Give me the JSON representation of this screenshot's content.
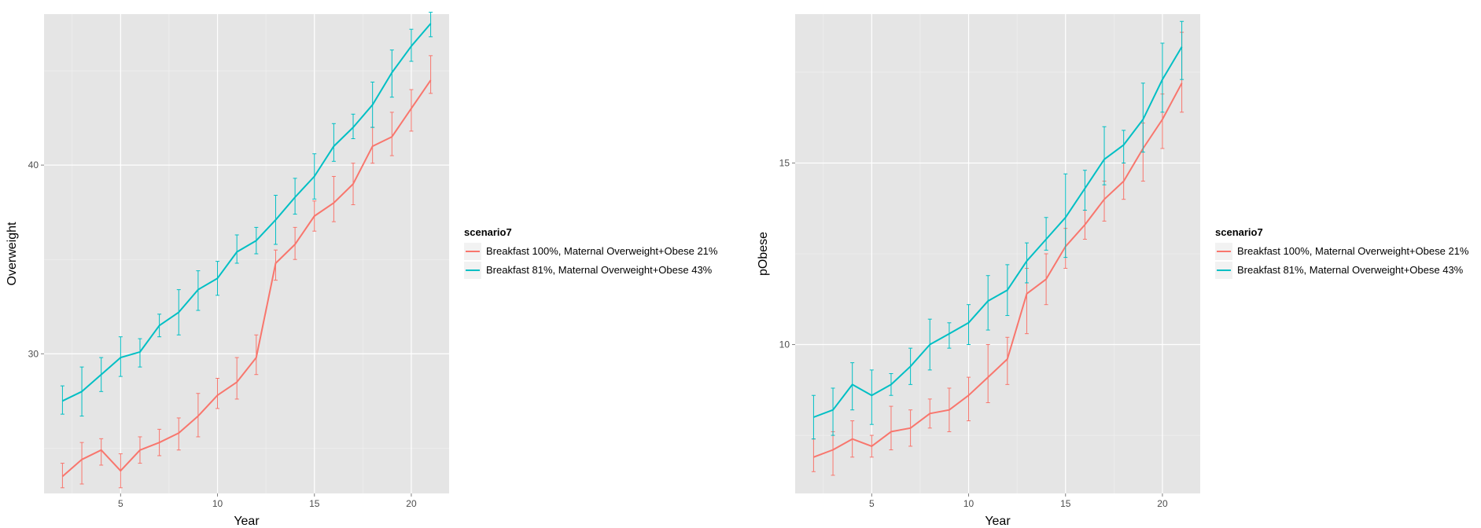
{
  "colors": {
    "series_1": "#F8766D",
    "series_2": "#00BFC4",
    "panel_bg": "#E5E5E5",
    "grid": "#FFFFFF"
  },
  "chart_data": [
    {
      "type": "line",
      "xlabel": "Year",
      "ylabel": "Overweight",
      "xlim": [
        1.05,
        21.95
      ],
      "ylim": [
        22.6,
        48.0
      ],
      "xticks": [
        5,
        10,
        15,
        20
      ],
      "yticks": [
        30,
        40
      ],
      "grid": true,
      "error_bars": true,
      "legend": {
        "title": "scenario7",
        "position": "right"
      },
      "x": [
        2,
        3,
        4,
        5,
        6,
        7,
        8,
        9,
        10,
        11,
        12,
        13,
        14,
        15,
        16,
        17,
        18,
        19,
        20,
        21
      ],
      "series": [
        {
          "name": "Breakfast 100%, Maternal Overweight+Obese 21%",
          "values": [
            23.5,
            24.4,
            24.9,
            23.8,
            24.9,
            25.3,
            25.8,
            26.7,
            27.8,
            28.5,
            29.8,
            34.8,
            35.8,
            37.3,
            38.0,
            39.0,
            41.0,
            41.5,
            43.0,
            44.5
          ],
          "lower": [
            22.9,
            23.1,
            24.1,
            22.9,
            24.2,
            24.6,
            24.9,
            25.6,
            27.1,
            27.6,
            28.9,
            33.9,
            35.0,
            36.5,
            37.0,
            37.9,
            40.1,
            40.5,
            41.8,
            43.8
          ],
          "upper": [
            24.2,
            25.3,
            25.5,
            24.7,
            25.6,
            26.0,
            26.6,
            27.9,
            28.7,
            29.8,
            31.0,
            35.5,
            36.7,
            38.1,
            39.4,
            40.1,
            42.0,
            42.8,
            44.0,
            45.8
          ]
        },
        {
          "name": "Breakfast 81%, Maternal Overweight+Obese 43%",
          "values": [
            27.5,
            28.0,
            28.9,
            29.8,
            30.1,
            31.5,
            32.2,
            33.4,
            34.0,
            35.4,
            36.0,
            37.1,
            38.3,
            39.4,
            41.0,
            42.0,
            43.2,
            44.9,
            46.3,
            47.5
          ],
          "lower": [
            26.8,
            26.7,
            28.0,
            28.8,
            29.3,
            30.9,
            31.0,
            32.3,
            33.1,
            34.8,
            35.3,
            35.8,
            37.4,
            38.2,
            40.2,
            41.4,
            42.0,
            43.6,
            45.5,
            46.8
          ],
          "upper": [
            28.3,
            29.3,
            29.8,
            30.9,
            30.8,
            32.1,
            33.4,
            34.4,
            34.9,
            36.3,
            36.7,
            38.4,
            39.3,
            40.6,
            42.2,
            42.7,
            44.4,
            46.1,
            47.2,
            48.1
          ]
        }
      ]
    },
    {
      "type": "line",
      "xlabel": "Year",
      "ylabel": "pObese",
      "xlim": [
        1.05,
        21.95
      ],
      "ylim": [
        5.9,
        19.1
      ],
      "xticks": [
        5,
        10,
        15,
        20
      ],
      "yticks": [
        10,
        15
      ],
      "grid": true,
      "error_bars": true,
      "legend": {
        "title": "scenario7",
        "position": "right"
      },
      "x": [
        2,
        3,
        4,
        5,
        6,
        7,
        8,
        9,
        10,
        11,
        12,
        13,
        14,
        15,
        16,
        17,
        18,
        19,
        20,
        21
      ],
      "series": [
        {
          "name": "Breakfast 100%, Maternal Overweight+Obese 21%",
          "values": [
            6.9,
            7.1,
            7.4,
            7.2,
            7.6,
            7.7,
            8.1,
            8.2,
            8.6,
            9.1,
            9.6,
            11.4,
            11.8,
            12.7,
            13.3,
            14.0,
            14.5,
            15.4,
            16.2,
            17.2
          ],
          "lower": [
            6.5,
            6.4,
            6.9,
            6.9,
            7.1,
            7.2,
            7.7,
            7.6,
            7.9,
            8.4,
            8.9,
            10.3,
            11.1,
            12.1,
            12.9,
            13.4,
            14.0,
            14.5,
            15.4,
            16.4
          ],
          "upper": [
            7.4,
            7.6,
            7.9,
            7.5,
            8.3,
            8.2,
            8.5,
            8.8,
            9.1,
            10.0,
            10.2,
            12.1,
            12.5,
            13.2,
            13.7,
            14.5,
            15.0,
            16.1,
            16.9,
            18.6
          ]
        },
        {
          "name": "Breakfast 81%, Maternal Overweight+Obese 43%",
          "values": [
            8.0,
            8.2,
            8.9,
            8.6,
            8.9,
            9.4,
            10.0,
            10.3,
            10.6,
            11.2,
            11.5,
            12.3,
            12.9,
            13.5,
            14.3,
            15.1,
            15.5,
            16.2,
            17.3,
            18.2
          ],
          "lower": [
            7.4,
            7.5,
            8.2,
            7.8,
            8.6,
            8.9,
            9.3,
            9.9,
            10.0,
            10.4,
            10.8,
            11.7,
            12.6,
            12.4,
            13.7,
            14.4,
            15.0,
            15.3,
            16.4,
            17.3
          ],
          "upper": [
            8.6,
            8.8,
            9.5,
            9.3,
            9.2,
            9.9,
            10.7,
            10.6,
            11.1,
            11.9,
            12.2,
            12.8,
            13.5,
            14.7,
            14.8,
            16.0,
            15.9,
            17.2,
            18.3,
            18.9
          ]
        }
      ]
    }
  ]
}
